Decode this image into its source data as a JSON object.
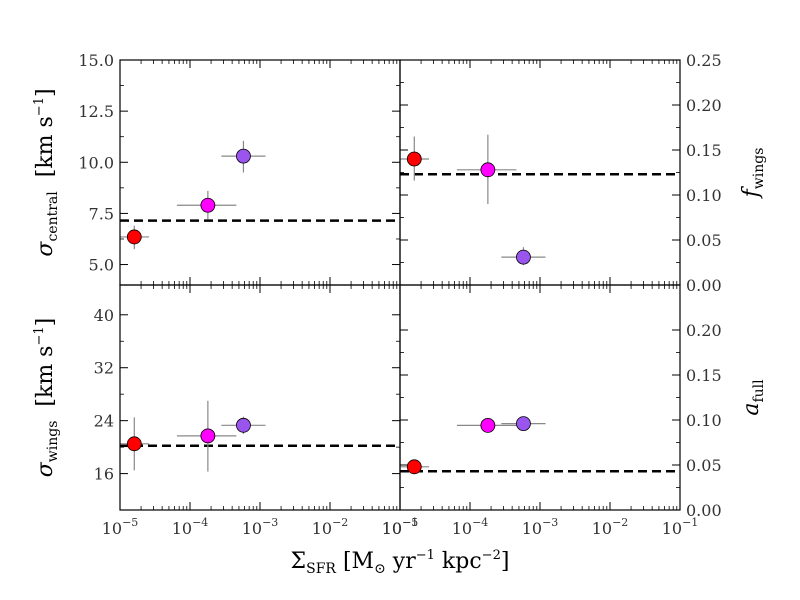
{
  "chart_data": {
    "type": "scatter",
    "figure": "2x2 panel figure sharing log-scale x axis",
    "xlabel": {
      "main": "Σ",
      "sub": "SFR",
      "rest": " [M",
      "sun": "⊙",
      "unit1": " yr",
      "sup1": "−1",
      "unit2": " kpc",
      "sup2": "−2",
      "close": "]"
    },
    "x_scale": "log",
    "xlim": [
      1e-05,
      0.1
    ],
    "x_tick_labels": [
      {
        "base": "10",
        "exp": "−5"
      },
      {
        "base": "10",
        "exp": "−4"
      },
      {
        "base": "10",
        "exp": "−3"
      },
      {
        "base": "10",
        "exp": "−2"
      },
      {
        "base": "10",
        "exp": "−1"
      }
    ],
    "x_ticks": [
      1e-05,
      0.0001,
      0.001,
      0.01,
      0.1
    ],
    "colors": {
      "red": "#ff0000",
      "magenta": "#ff00ff",
      "purple": "#9955ee",
      "errorbar": "#888888",
      "dashed": "#000000"
    },
    "panels": [
      {
        "id": "top-left",
        "ylabel": {
          "main": "σ",
          "sub": "central",
          "unit": "[km s",
          "sup": "−1",
          "close": "]"
        },
        "ylabel_side": "left",
        "ylim": [
          4.0,
          15.0
        ],
        "y_ticks": [
          5.0,
          7.5,
          10.0,
          12.5,
          15.0
        ],
        "y_tick_labels": [
          "5.0",
          "7.5",
          "10.0",
          "12.5",
          "15.0"
        ],
        "dashed_line": 7.15,
        "points": [
          {
            "x": 1.6e-05,
            "y": 6.35,
            "x_lo": 1e-05,
            "x_hi": 2.6e-05,
            "y_lo": 5.75,
            "y_hi": 6.9,
            "color": "red"
          },
          {
            "x": 0.00018,
            "y": 7.9,
            "x_lo": 6.5e-05,
            "x_hi": 0.00046,
            "y_lo": 7.2,
            "y_hi": 8.6,
            "color": "magenta"
          },
          {
            "x": 0.00058,
            "y": 10.3,
            "x_lo": 0.00028,
            "x_hi": 0.0012,
            "y_lo": 9.5,
            "y_hi": 11.05,
            "color": "purple"
          }
        ]
      },
      {
        "id": "top-right",
        "ylabel": {
          "main": "f",
          "sub": "wings",
          "unit": "",
          "sup": "",
          "close": ""
        },
        "ylabel_side": "right",
        "ylim": [
          0.0,
          0.25
        ],
        "y_ticks": [
          0.0,
          0.05,
          0.1,
          0.15,
          0.2,
          0.25
        ],
        "y_tick_labels": [
          "0.00",
          "0.05",
          "0.10",
          "0.15",
          "0.20",
          "0.25"
        ],
        "dashed_line": 0.123,
        "points": [
          {
            "x": 1.6e-05,
            "y": 0.14,
            "x_lo": 1e-05,
            "x_hi": 2.6e-05,
            "y_lo": 0.116,
            "y_hi": 0.165,
            "color": "red"
          },
          {
            "x": 0.00018,
            "y": 0.128,
            "x_lo": 6.5e-05,
            "x_hi": 0.00046,
            "y_lo": 0.09,
            "y_hi": 0.167,
            "color": "magenta"
          },
          {
            "x": 0.00058,
            "y": 0.031,
            "x_lo": 0.00028,
            "x_hi": 0.0012,
            "y_lo": 0.022,
            "y_hi": 0.042,
            "color": "purple"
          }
        ]
      },
      {
        "id": "bottom-left",
        "ylabel": {
          "main": "σ",
          "sub": "wings",
          "unit": "[km s",
          "sup": "−1",
          "close": "]"
        },
        "ylabel_side": "left",
        "ylim": [
          10.5,
          44.5
        ],
        "y_ticks": [
          16,
          24,
          32,
          40
        ],
        "y_tick_labels": [
          "16",
          "24",
          "32",
          "40"
        ],
        "dashed_line": 20.2,
        "points": [
          {
            "x": 1.6e-05,
            "y": 20.5,
            "x_lo": 1e-05,
            "x_hi": 2.6e-05,
            "y_lo": 16.5,
            "y_hi": 24.5,
            "color": "red"
          },
          {
            "x": 0.00018,
            "y": 21.7,
            "x_lo": 6.5e-05,
            "x_hi": 0.00046,
            "y_lo": 16.3,
            "y_hi": 27.0,
            "color": "magenta"
          },
          {
            "x": 0.00058,
            "y": 23.3,
            "x_lo": 0.00028,
            "x_hi": 0.0012,
            "y_lo": 22.0,
            "y_hi": 24.6,
            "color": "purple"
          }
        ]
      },
      {
        "id": "bottom-right",
        "ylabel": {
          "main": "a",
          "sub": "full",
          "unit": "",
          "sup": "",
          "close": ""
        },
        "ylabel_side": "right",
        "ylim": [
          0.0,
          0.25
        ],
        "y_ticks": [
          0.0,
          0.05,
          0.1,
          0.15,
          0.2
        ],
        "y_tick_labels": [
          "0.00",
          "0.05",
          "0.10",
          "0.15",
          "0.20"
        ],
        "dashed_line": 0.043,
        "points": [
          {
            "x": 1.6e-05,
            "y": 0.048,
            "x_lo": 1e-05,
            "x_hi": 2.6e-05,
            "y_lo": 0.046,
            "y_hi": 0.051,
            "color": "red"
          },
          {
            "x": 0.00018,
            "y": 0.094,
            "x_lo": 6.5e-05,
            "x_hi": 0.00046,
            "y_lo": 0.094,
            "y_hi": 0.094,
            "color": "magenta"
          },
          {
            "x": 0.00058,
            "y": 0.096,
            "x_lo": 0.00028,
            "x_hi": 0.0012,
            "y_lo": 0.089,
            "y_hi": 0.103,
            "color": "purple"
          }
        ]
      }
    ]
  }
}
